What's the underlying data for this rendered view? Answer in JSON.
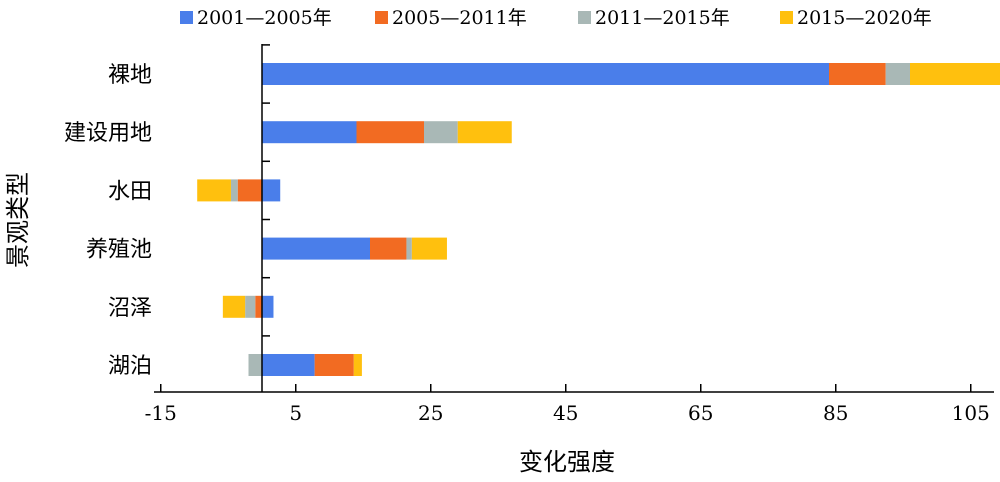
{
  "chart_data": {
    "type": "bar",
    "orientation": "horizontal",
    "stacked": true,
    "title": "",
    "xlabel": "变化强度",
    "ylabel": "景观类型",
    "xlim": [
      -16,
      111
    ],
    "xticks": [
      -15,
      5,
      25,
      45,
      65,
      85,
      105
    ],
    "xtick_labels": [
      "-15",
      "5",
      "25",
      "45",
      "65",
      "85",
      "105"
    ],
    "categories": [
      "裸地",
      "建设用地",
      "水田",
      "养殖池",
      "沼泽",
      "湖泊"
    ],
    "legend_position": "top",
    "grid": false,
    "series": [
      {
        "name": "2001—2005年",
        "color": "#4A7EEA",
        "values": [
          84,
          14,
          2.7,
          16,
          1.7,
          7.8
        ]
      },
      {
        "name": "2005—2011年",
        "color": "#F26B22",
        "values": [
          8.4,
          10,
          -3.6,
          5.4,
          -1,
          5.8
        ]
      },
      {
        "name": "2011—2015年",
        "color": "#A9B8B6",
        "values": [
          3.6,
          5,
          -1,
          0.8,
          -1.5,
          -2
        ]
      },
      {
        "name": "2015—2020年",
        "color": "#FFC00E",
        "values": [
          14.4,
          8,
          -5,
          5.2,
          -3.3,
          1.2
        ]
      }
    ]
  }
}
